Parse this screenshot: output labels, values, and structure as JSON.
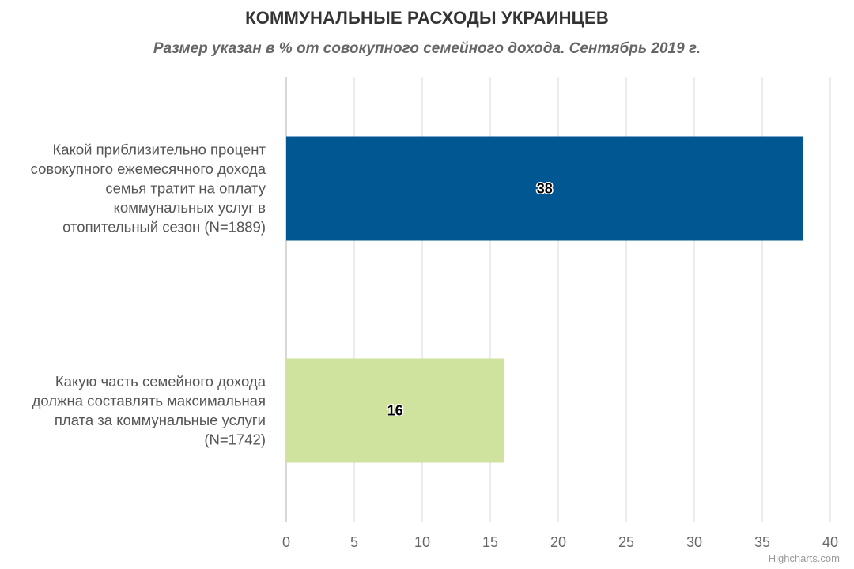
{
  "chart_data": {
    "type": "bar",
    "orientation": "horizontal",
    "title": "КОММУНАЛЬНЫЕ РАСХОДЫ УКРАИНЦЕВ",
    "subtitle": "Размер указан в % от совокупного семейного дохода. Сентябрь 2019 г.",
    "categories": [
      [
        "Какой приблизительно процент",
        "совокупного ежемесячного дохода",
        "семья тратит на оплату",
        "коммунальных услуг в",
        "отопительный сезон (N=1889)"
      ],
      [
        "Какую часть семейного дохода",
        "должна составлять максимальная",
        "плата за коммунальные услуги",
        "(N=1742)"
      ]
    ],
    "values": [
      38,
      16
    ],
    "colors": [
      "#005792",
      "#cfe29e"
    ],
    "xlim": [
      0,
      40
    ],
    "ticks": [
      0,
      5,
      10,
      15,
      20,
      25,
      30,
      35,
      40
    ],
    "grid": true,
    "legend": "none",
    "data_labels": true
  },
  "credits": "Highcharts.com"
}
